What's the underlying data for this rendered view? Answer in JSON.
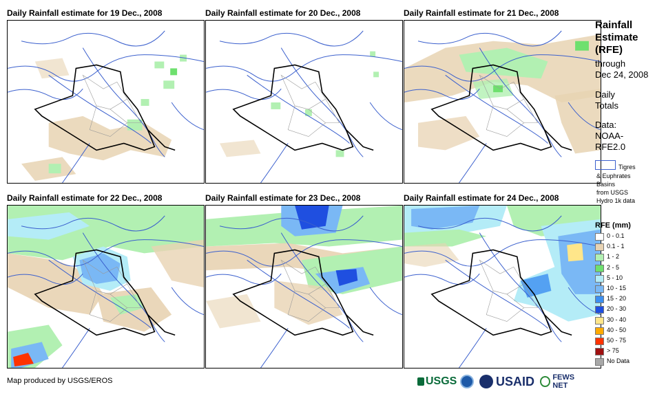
{
  "panels": [
    {
      "title": "Daily Rainfall estimate for 19 Dec., 2008"
    },
    {
      "title": "Daily Rainfall estimate for 20 Dec., 2008"
    },
    {
      "title": "Daily Rainfall estimate for 21 Dec., 2008"
    },
    {
      "title": "Daily Rainfall estimate for 22 Dec., 2008"
    },
    {
      "title": "Daily Rainfall estimate for 23 Dec., 2008"
    },
    {
      "title": "Daily Rainfall estimate for 24 Dec., 2008"
    }
  ],
  "legend": {
    "title_lines": [
      "Rainfall",
      "Estimate",
      "(RFE)"
    ],
    "through": "through",
    "date": "Dec 24, 2008",
    "daily": "Daily",
    "totals": "Totals",
    "data_label": "Data:",
    "data_source_1": "NOAA-",
    "data_source_2": "RFE2.0",
    "basin_lines": [
      "Tigres",
      "& Euphrates",
      "Basins",
      "from USGS",
      "Hydro 1k data"
    ],
    "rfe_units": "RFE (mm)",
    "classes": [
      {
        "label": "0 - 0.1",
        "color": "#ffffff"
      },
      {
        "label": "0.1 - 1",
        "color": "#e8d3b3"
      },
      {
        "label": "1 - 2",
        "color": "#b2f0b2"
      },
      {
        "label": "2 - 5",
        "color": "#6ee06e"
      },
      {
        "label": "5 - 10",
        "color": "#b4ecf7"
      },
      {
        "label": "10 - 15",
        "color": "#7ab8f5"
      },
      {
        "label": "15 - 20",
        "color": "#3c8ff0"
      },
      {
        "label": "20 - 30",
        "color": "#1f4fe0"
      },
      {
        "label": "30 - 40",
        "color": "#ffe68a"
      },
      {
        "label": "40 - 50",
        "color": "#ffaa00"
      },
      {
        "label": "50 - 75",
        "color": "#ff3300"
      },
      {
        "label": "> 75",
        "color": "#a01010"
      },
      {
        "label": "No Data",
        "color": "#a8a8a8"
      }
    ]
  },
  "footer": {
    "credit": "Map produced by USGS/EROS",
    "logo_usgs": "USGS",
    "logo_usaid": "USAID",
    "logo_fews": "FEWS NET"
  },
  "colors": {
    "river": "#3a5fcd",
    "border": "#000000",
    "admin": "#999999"
  }
}
